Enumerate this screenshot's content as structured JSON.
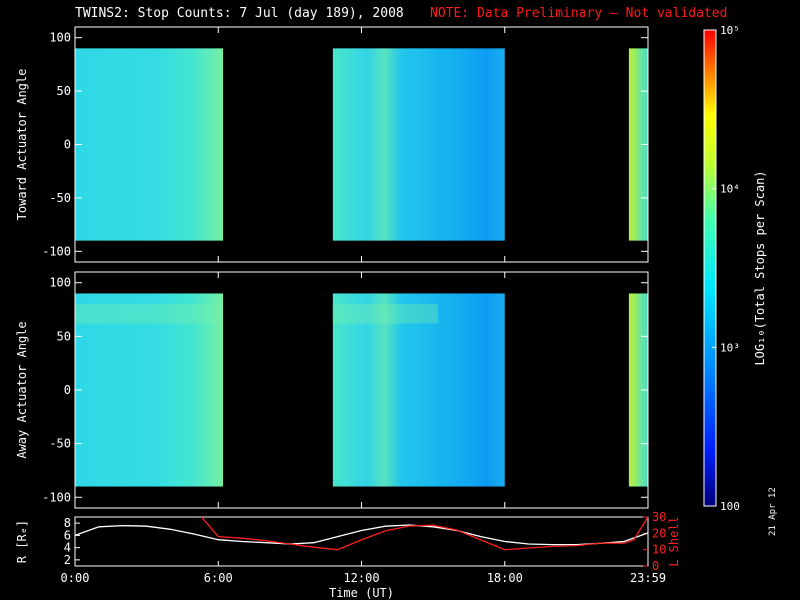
{
  "title": {
    "main": "TWINS2: Stop Counts:  7 Jul (day 189), 2008",
    "note": "NOTE: Data Preliminary – Not validated",
    "note_color": "#ff1a1a"
  },
  "datestamp": "21 Apr 12",
  "chart_data": [
    {
      "type": "heatmap",
      "panel": "toward",
      "ylabel": "Toward Actuator Angle",
      "ylim": [
        -110,
        110
      ],
      "yticks": [
        100,
        50,
        0,
        -50,
        -100
      ],
      "xlim_hours": [
        0,
        24
      ],
      "data_blocks_hours": [
        [
          0.0,
          6.2
        ],
        [
          10.8,
          18.0
        ],
        [
          23.2,
          24.0
        ]
      ],
      "angle_range": [
        -90,
        90
      ]
    },
    {
      "type": "heatmap",
      "panel": "away",
      "ylabel": "Away Actuator Angle",
      "ylim": [
        -110,
        110
      ],
      "yticks": [
        100,
        50,
        0,
        -50,
        -100
      ],
      "xlim_hours": [
        0,
        24
      ],
      "data_blocks_hours": [
        [
          0.0,
          6.2
        ],
        [
          10.8,
          18.0
        ],
        [
          23.2,
          24.0
        ]
      ],
      "angle_range": [
        -90,
        90
      ]
    },
    {
      "type": "line",
      "panel": "orbit",
      "xlabel": "Time (UT)",
      "xtick_labels": [
        "0:00",
        "6:00",
        "12:00",
        "18:00",
        "23:59"
      ],
      "xtick_hours": [
        0,
        6,
        12,
        18,
        24
      ],
      "left_axis": {
        "label": "R [Rₑ]",
        "ylim": [
          1,
          9
        ],
        "ticks": [
          8,
          6,
          4,
          2
        ],
        "color": "#ffffff"
      },
      "right_axis": {
        "label": "L Shell",
        "ylim": [
          0,
          30
        ],
        "ticks": [
          30,
          20,
          10,
          0
        ],
        "color": "#ff2020"
      },
      "series": [
        {
          "name": "R",
          "color": "#ffffff",
          "x": [
            0,
            1,
            2,
            3,
            4,
            5,
            6,
            7,
            8,
            9,
            10,
            11,
            12,
            13,
            14,
            15,
            16,
            17,
            18,
            19,
            20,
            21,
            22,
            23,
            24
          ],
          "y": [
            6.0,
            7.4,
            7.6,
            7.5,
            7.0,
            6.2,
            5.3,
            5.0,
            4.8,
            4.6,
            4.8,
            5.8,
            6.8,
            7.5,
            7.7,
            7.4,
            6.8,
            5.8,
            5.0,
            4.6,
            4.5,
            4.5,
            4.7,
            5.0,
            6.4
          ]
        },
        {
          "name": "L Shell",
          "color": "#ff2020",
          "x": [
            5.3,
            6,
            7,
            8,
            9,
            10,
            11,
            12,
            13,
            14,
            15,
            16,
            17,
            18,
            19,
            20,
            21,
            22,
            23,
            23.4,
            24
          ],
          "y": [
            30,
            18,
            17,
            15.5,
            13.5,
            11.5,
            10,
            16,
            21.5,
            24.5,
            25,
            22,
            16,
            10,
            11,
            12,
            12.5,
            14,
            14,
            16,
            30
          ]
        }
      ]
    }
  ],
  "colorbar": {
    "label": "LOG₁₀(Total Stops per Scan)",
    "tick_labels": [
      "10⁵",
      "10⁴",
      "10³",
      "100"
    ],
    "tick_values": [
      100000,
      10000,
      1000,
      100
    ],
    "range": [
      100,
      100000
    ],
    "scale": "log"
  }
}
